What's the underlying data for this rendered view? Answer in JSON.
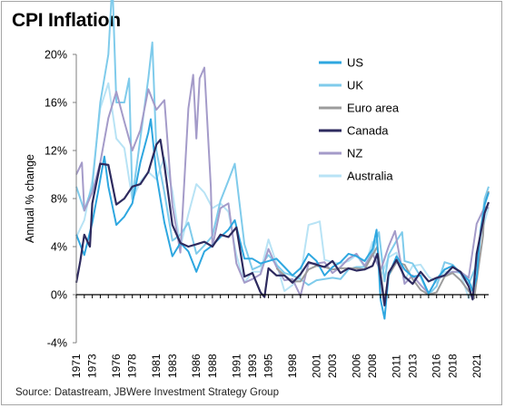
{
  "chart_data": {
    "type": "line",
    "title": "CPI Inflation",
    "ylabel": "Annual % change",
    "xlabel": "",
    "source": "Source: Datastream, JBWere Investment Strategy Group",
    "ylim": [
      -4,
      20
    ],
    "xlim": [
      1971,
      2022.5
    ],
    "yticks": [
      -4,
      0,
      4,
      8,
      12,
      16,
      20
    ],
    "ytick_labels": [
      "-4%",
      "0%",
      "4%",
      "8%",
      "12%",
      "16%",
      "20%"
    ],
    "xticks": [
      1971,
      1973,
      1976,
      1978,
      1981,
      1983,
      1986,
      1988,
      1991,
      1993,
      1995,
      1998,
      2001,
      2003,
      2006,
      2008,
      2011,
      2013,
      2016,
      2018,
      2021
    ],
    "xtick_labels": [
      "1971",
      "1973",
      "1976",
      "1978",
      "1981",
      "1983",
      "1986",
      "1988",
      "1991",
      "1993",
      "1995",
      "1998",
      "2001",
      "2003",
      "2006",
      "2008",
      "2011",
      "2013",
      "2016",
      "2018",
      "2021"
    ],
    "grid": false,
    "legend_position": "top-right",
    "series": [
      {
        "name": "US",
        "color": "#2ea7e0",
        "x": [
          1971,
          1972,
          1973,
          1973.7,
          1974.5,
          1975,
          1976,
          1977,
          1978,
          1979,
          1980,
          1980.3,
          1981,
          1982,
          1983,
          1984,
          1985,
          1986,
          1987,
          1988,
          1989,
          1990,
          1990.8,
          1992,
          1993,
          1994,
          1995,
          1996,
          1997,
          1998,
          1999,
          2000,
          2001,
          2002,
          2003,
          2004,
          2005,
          2006,
          2007,
          2008,
          2008.5,
          2009,
          2009.5,
          2010,
          2011,
          2012,
          2013,
          2014,
          2015,
          2016,
          2017,
          2018,
          2019,
          2020,
          2020.5,
          2021,
          2021.5,
          2022,
          2022.5
        ],
        "y": [
          5,
          3.3,
          6,
          8.5,
          11.5,
          9,
          5.8,
          6.5,
          7.6,
          11,
          13.5,
          14.6,
          10,
          6,
          3.2,
          4.3,
          3.6,
          1.9,
          3.6,
          4.1,
          4.8,
          5.4,
          6.2,
          3,
          3,
          2.6,
          2.8,
          3,
          2.3,
          1.6,
          2.2,
          3.4,
          2.8,
          1.6,
          2.3,
          2.7,
          3.4,
          3.2,
          2.8,
          3.8,
          5.4,
          -0.4,
          -2,
          1.6,
          3.2,
          2.1,
          1.5,
          1.6,
          0.1,
          1.3,
          2.1,
          2.4,
          1.8,
          1.2,
          0.3,
          1.4,
          5.4,
          7.5,
          8.5
        ]
      },
      {
        "name": "UK",
        "color": "#7fcbeb",
        "x": [
          1971,
          1972,
          1973,
          1974,
          1975,
          1975.5,
          1976,
          1977,
          1977.6,
          1978,
          1979,
          1980,
          1980.5,
          1981,
          1982,
          1983,
          1984,
          1985,
          1986,
          1987,
          1988,
          1989,
          1990,
          1990.8,
          1992,
          1993,
          1994,
          1995,
          1996,
          1997,
          1998,
          1999,
          2000,
          2001,
          2002,
          2003,
          2004,
          2005,
          2006,
          2007,
          2008,
          2008.8,
          2009.5,
          2010,
          2011,
          2011.7,
          2012,
          2013,
          2014,
          2015,
          2016,
          2017,
          2018,
          2019,
          2020,
          2021,
          2022,
          2022.5
        ],
        "y": [
          9,
          7,
          9,
          16,
          20,
          26,
          16,
          16,
          18,
          8,
          13,
          18,
          21,
          12,
          8.5,
          4.5,
          5,
          6,
          3.4,
          4.1,
          4.9,
          7.8,
          9.5,
          10.9,
          4.2,
          2.1,
          2.4,
          3.3,
          2.5,
          1.8,
          1.6,
          1.3,
          0.8,
          1.2,
          1.3,
          1.4,
          1.3,
          2.1,
          2.3,
          2.3,
          3.6,
          5.2,
          1.1,
          3.3,
          4.5,
          5.2,
          2.8,
          2.6,
          1.5,
          0,
          0.7,
          2.7,
          2.5,
          1.8,
          0.9,
          2.5,
          8,
          9
        ]
      },
      {
        "name": "Euro area",
        "color": "#9c9c9c",
        "x": [
          1996,
          1997,
          1998,
          1999,
          2000,
          2001,
          2002,
          2003,
          2004,
          2005,
          2006,
          2007,
          2008,
          2008.6,
          2009.5,
          2010,
          2011,
          2012,
          2013,
          2014,
          2015,
          2016,
          2017,
          2018,
          2019,
          2020,
          2020.7,
          2021,
          2021.8,
          2022,
          2022.5
        ],
        "y": [
          2.2,
          1.6,
          1.1,
          1.1,
          2.1,
          2.4,
          2.3,
          2.1,
          2.2,
          2.2,
          2.2,
          2.1,
          3.3,
          4,
          -0.6,
          1.6,
          2.7,
          2.5,
          1.3,
          0.4,
          0,
          0.2,
          1.5,
          1.8,
          1.2,
          0.3,
          -0.3,
          1.2,
          4.9,
          7.5,
          8.6
        ]
      },
      {
        "name": "Canada",
        "color": "#2d2a5e",
        "x": [
          1971,
          1971.5,
          1972,
          1972.7,
          1973,
          1974,
          1975,
          1976,
          1977,
          1978,
          1979,
          1980,
          1981,
          1981.5,
          1982,
          1983,
          1984,
          1985,
          1986,
          1987,
          1988,
          1989,
          1990,
          1991,
          1992,
          1993,
          1994,
          1994.5,
          1995,
          1996,
          1997,
          1998,
          1999,
          2000,
          2001,
          2002,
          2003,
          2004,
          2005,
          2006,
          2007,
          2008,
          2008.6,
          2009.5,
          2010,
          2011,
          2012,
          2013,
          2014,
          2015,
          2016,
          2017,
          2018,
          2019,
          2020,
          2020.5,
          2021,
          2022,
          2022.5
        ],
        "y": [
          1,
          2.8,
          5,
          4,
          7.6,
          10.9,
          10.8,
          7.5,
          8,
          9,
          9.2,
          10.2,
          12.5,
          12.9,
          10.8,
          5.8,
          4.3,
          4,
          4.2,
          4.4,
          4,
          5,
          4.8,
          5.6,
          1.5,
          1.8,
          0.2,
          -0.2,
          2.2,
          1.6,
          1.6,
          1,
          1.7,
          2.7,
          2.5,
          2.3,
          2.8,
          1.8,
          2.2,
          2,
          2.1,
          2.4,
          3.4,
          -0.9,
          1.8,
          2.9,
          1.5,
          0.9,
          1.9,
          1.1,
          1.4,
          1.6,
          2.3,
          1.9,
          0.7,
          -0.4,
          3.4,
          6.8,
          7.7
        ]
      },
      {
        "name": "NZ",
        "color": "#a49bc9",
        "x": [
          1971,
          1971.7,
          1972,
          1973,
          1974,
          1975,
          1976,
          1977,
          1978,
          1979,
          1980,
          1981,
          1982,
          1983,
          1984,
          1985,
          1985.6,
          1986,
          1986.4,
          1987,
          1987.8,
          1988,
          1989,
          1990,
          1991,
          1992,
          1993,
          1994,
          1995,
          1996,
          1997,
          1998,
          1999,
          2000,
          2001,
          2002,
          2003,
          2004,
          2005,
          2006,
          2007,
          2008,
          2009,
          2010,
          2010.8,
          2011,
          2012,
          2013,
          2014,
          2015,
          2016,
          2017,
          2018,
          2019,
          2020,
          2021,
          2022,
          2022.5
        ],
        "y": [
          10,
          11,
          7,
          8.5,
          11,
          14.7,
          16.9,
          14.4,
          12,
          13.7,
          17.1,
          15.4,
          16.2,
          7.4,
          3.5,
          15.5,
          18.3,
          13,
          18,
          18.9,
          9,
          4,
          7.2,
          7.6,
          2.6,
          1,
          1.3,
          1.7,
          3.8,
          2.3,
          1.2,
          1.3,
          -0.1,
          2.6,
          2.6,
          2.7,
          1.8,
          2.3,
          3,
          3.4,
          2.4,
          3.4,
          2,
          4,
          5.3,
          4.6,
          0.9,
          1.6,
          0.8,
          0.1,
          1.3,
          1.6,
          1.9,
          1.9,
          1.4,
          5.9,
          7.3,
          7.2
        ]
      },
      {
        "name": "Australia",
        "color": "#b8e3f5",
        "x": [
          1971,
          1972,
          1973,
          1974,
          1975,
          1976,
          1977,
          1978,
          1979,
          1980,
          1981,
          1982,
          1983,
          1984,
          1985,
          1986,
          1987,
          1988,
          1989,
          1990,
          1991,
          1992,
          1993,
          1994,
          1995,
          1996,
          1997,
          1998,
          1999,
          2000,
          2001,
          2001.4,
          2002,
          2003,
          2004,
          2005,
          2006,
          2007,
          2008,
          2009,
          2010,
          2011,
          2012,
          2013,
          2014,
          2015,
          2016,
          2017,
          2018,
          2019,
          2020,
          2020.6,
          2021,
          2022,
          2022.5
        ],
        "y": [
          4.8,
          6.2,
          9.5,
          15.5,
          17.6,
          13,
          12.2,
          7.9,
          9.4,
          10.2,
          9.6,
          11.4,
          8.6,
          4,
          6.7,
          9.2,
          8.5,
          7.2,
          7.6,
          6.9,
          3.3,
          1,
          1.9,
          1.9,
          4.6,
          2.6,
          0.3,
          0.8,
          1.5,
          5.8,
          6,
          6.1,
          2.9,
          2.7,
          2.6,
          2.8,
          3.3,
          2.3,
          4.4,
          1.5,
          3.1,
          3.5,
          1.2,
          2.4,
          2.5,
          1.5,
          1,
          1.9,
          1.9,
          1.8,
          -0.3,
          1.1,
          3.5,
          6.1,
          7.3
        ]
      }
    ]
  }
}
